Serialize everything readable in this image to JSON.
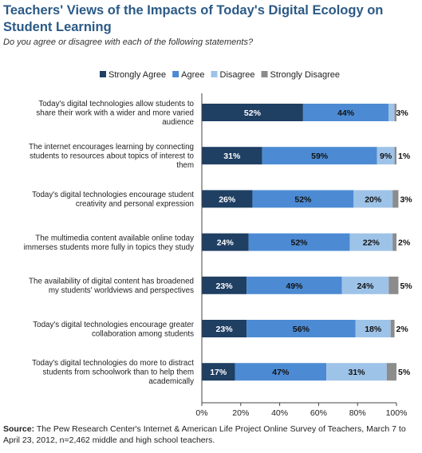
{
  "header": {
    "title": "Teachers' Views of the Impacts of Today's Digital Ecology on Student Learning",
    "subtitle": "Do you agree or disagree with each of the following statements?"
  },
  "footer": {
    "source_label": "Source:",
    "source_text": "The Pew Research Center's Internet & American Life Project Online Survey of Teachers, March 7 to April 23, 2012, n=2,462 middle and high school teachers."
  },
  "chart_data": {
    "type": "bar",
    "orientation": "horizontal",
    "stacked": true,
    "title": "Teachers' Views of the Impacts of Today's Digital Ecology on Student Learning",
    "subtitle": "Do you agree or disagree with each of the following statements?",
    "xlabel": "",
    "ylabel": "",
    "xlim": [
      0,
      100
    ],
    "x_ticks": [
      "0%",
      "20%",
      "40%",
      "60%",
      "80%",
      "100%"
    ],
    "legend_position": "top",
    "grid": false,
    "categories": [
      [
        "Today's digital technologies allow students to",
        "share their work with a wider and more varied",
        "audience"
      ],
      [
        "The internet encourages learning by connecting",
        "students to resources about topics of interest to",
        "them"
      ],
      [
        "Today's digital technologies encourage student",
        "creativity and personal expression"
      ],
      [
        "The multimedia content available online today",
        "immerses students more fully in topics they study"
      ],
      [
        "The availability of digital content has broadened",
        "my students' worldviews and perspectives"
      ],
      [
        "Today's digital technologies encourage greater",
        "collaboration among students"
      ],
      [
        "Today's digital technologies do more to distract",
        "students from schoolwork than to help them",
        "academically"
      ]
    ],
    "series": [
      {
        "name": "Strongly Agree",
        "color": "#1f3f63",
        "values": [
          52,
          31,
          26,
          24,
          23,
          23,
          17
        ],
        "labels": [
          "52%",
          "31%",
          "26%",
          "24%",
          "23%",
          "23%",
          "17%"
        ]
      },
      {
        "name": "Agree",
        "color": "#4c8bd3",
        "values": [
          44,
          59,
          52,
          52,
          49,
          56,
          47
        ],
        "labels": [
          "44%",
          "59%",
          "52%",
          "52%",
          "49%",
          "56%",
          "47%"
        ]
      },
      {
        "name": "Disagree",
        "color": "#9ec3e8",
        "values": [
          3,
          9,
          20,
          22,
          24,
          18,
          31
        ],
        "labels": [
          "3%",
          "9%",
          "20%",
          "22%",
          "24%",
          "18%",
          "31%"
        ]
      },
      {
        "name": "Strongly Disagree",
        "color": "#8c8c8c",
        "values": [
          1,
          1,
          3,
          2,
          5,
          2,
          5
        ],
        "labels": [
          "",
          "1%",
          "3%",
          "2%",
          "5%",
          "2%",
          "5%"
        ]
      }
    ]
  }
}
